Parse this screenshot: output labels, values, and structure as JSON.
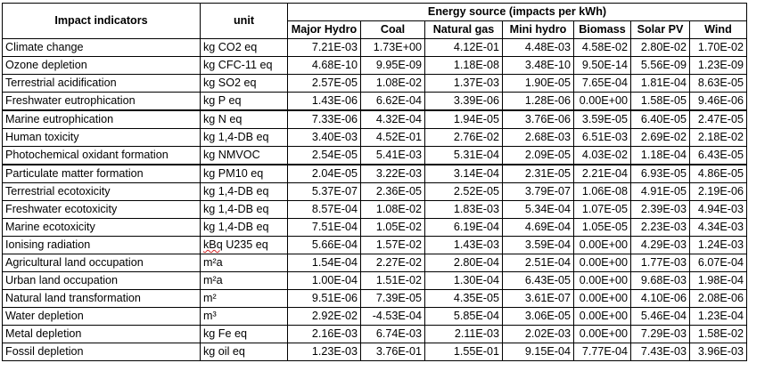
{
  "table": {
    "header": {
      "indicator": "Impact indicators",
      "unit": "unit",
      "group": "Energy source (impacts per kWh)",
      "sources": [
        "Major Hydro",
        "Coal",
        "Natural gas",
        "Mini hydro",
        "Biomass",
        "Solar PV",
        "Wind"
      ]
    },
    "rows": [
      {
        "indicator": "Climate change",
        "unit": "kg CO2 eq",
        "values": [
          "7.21E-03",
          "1.73E+00",
          "4.12E-01",
          "4.48E-03",
          "4.58E-02",
          "2.80E-02",
          "1.70E-02"
        ]
      },
      {
        "indicator": "Ozone depletion",
        "unit": "kg CFC-11 eq",
        "values": [
          "4.68E-10",
          "9.95E-09",
          "1.18E-08",
          "3.48E-10",
          "9.50E-14",
          "5.56E-09",
          "1.23E-09"
        ]
      },
      {
        "indicator": "Terrestrial acidification",
        "unit": "kg SO2 eq",
        "values": [
          "2.57E-05",
          "1.08E-02",
          "1.37E-03",
          "1.90E-05",
          "7.65E-04",
          "1.81E-04",
          "8.63E-05"
        ]
      },
      {
        "indicator": "Freshwater eutrophication",
        "unit": "kg P eq",
        "values": [
          "1.43E-06",
          "6.62E-04",
          "3.39E-06",
          "1.28E-06",
          "0.00E+00",
          "1.58E-05",
          "9.46E-06"
        ]
      },
      {
        "indicator": "Marine eutrophication",
        "unit": "kg N eq",
        "values": [
          "7.33E-06",
          "4.32E-04",
          "1.94E-05",
          "3.76E-06",
          "3.59E-05",
          "6.40E-05",
          "2.47E-05"
        ]
      },
      {
        "indicator": "Human toxicity",
        "unit": "kg 1,4-DB eq",
        "values": [
          "3.40E-03",
          "4.52E-01",
          "2.76E-02",
          "2.68E-03",
          "6.51E-03",
          "2.69E-02",
          "2.18E-02"
        ]
      },
      {
        "indicator": "Photochemical oxidant formation",
        "unit": "kg NMVOC",
        "values": [
          "2.54E-05",
          "5.41E-03",
          "5.31E-04",
          "2.09E-05",
          "4.03E-02",
          "1.18E-04",
          "6.43E-05"
        ]
      },
      {
        "indicator": "Particulate matter formation",
        "unit": "kg PM10 eq",
        "values": [
          "2.04E-05",
          "3.22E-03",
          "3.14E-04",
          "2.31E-05",
          "2.21E-04",
          "6.93E-05",
          "4.86E-05"
        ]
      },
      {
        "indicator": "Terrestrial ecotoxicity",
        "unit": "kg 1,4-DB eq",
        "values": [
          "5.37E-07",
          "2.36E-05",
          "2.52E-05",
          "3.79E-07",
          "1.06E-08",
          "4.91E-05",
          "2.19E-06"
        ]
      },
      {
        "indicator": "Freshwater ecotoxicity",
        "unit": "kg 1,4-DB eq",
        "values": [
          "8.57E-04",
          "1.08E-02",
          "1.83E-03",
          "5.34E-04",
          "1.07E-05",
          "2.39E-03",
          "4.94E-03"
        ]
      },
      {
        "indicator": "Marine ecotoxicity",
        "unit": "kg 1,4-DB eq",
        "values": [
          "7.51E-04",
          "1.05E-02",
          "6.19E-04",
          "4.69E-04",
          "1.05E-05",
          "2.23E-03",
          "4.34E-03"
        ]
      },
      {
        "indicator": "Ionising radiation",
        "unit": "kBq U235 eq",
        "values": [
          "5.66E-04",
          "1.57E-02",
          "1.43E-03",
          "3.59E-04",
          "0.00E+00",
          "4.29E-03",
          "1.24E-03"
        ]
      },
      {
        "indicator": "Agricultural land occupation",
        "unit": "m²a",
        "values": [
          "1.54E-04",
          "2.27E-02",
          "2.80E-04",
          "2.51E-04",
          "0.00E+00",
          "1.77E-03",
          "6.07E-04"
        ]
      },
      {
        "indicator": "Urban land occupation",
        "unit": "m²a",
        "values": [
          "1.00E-04",
          "1.51E-02",
          "1.30E-04",
          "6.43E-05",
          "0.00E+00",
          "9.68E-03",
          "1.98E-04"
        ]
      },
      {
        "indicator": "Natural land transformation",
        "unit": "m²",
        "values": [
          "9.51E-06",
          "7.39E-05",
          "4.35E-05",
          "3.61E-07",
          "0.00E+00",
          "4.10E-06",
          "2.08E-06"
        ]
      },
      {
        "indicator": "Water depletion",
        "unit": "m³",
        "values": [
          "2.92E-02",
          "-4.53E-04",
          "5.85E-04",
          "3.06E-05",
          "0.00E+00",
          "5.46E-04",
          "1.23E-04"
        ]
      },
      {
        "indicator": "Metal depletion",
        "unit": "kg Fe eq",
        "values": [
          "2.16E-03",
          "6.74E-03",
          "2.11E-03",
          "2.02E-03",
          "0.00E+00",
          "7.29E-03",
          "1.58E-02"
        ]
      },
      {
        "indicator": "Fossil depletion",
        "unit": "kg oil eq",
        "values": [
          "1.23E-03",
          "3.76E-01",
          "1.55E-01",
          "9.15E-04",
          "7.77E-04",
          "7.43E-03",
          "3.96E-03"
        ]
      }
    ]
  }
}
